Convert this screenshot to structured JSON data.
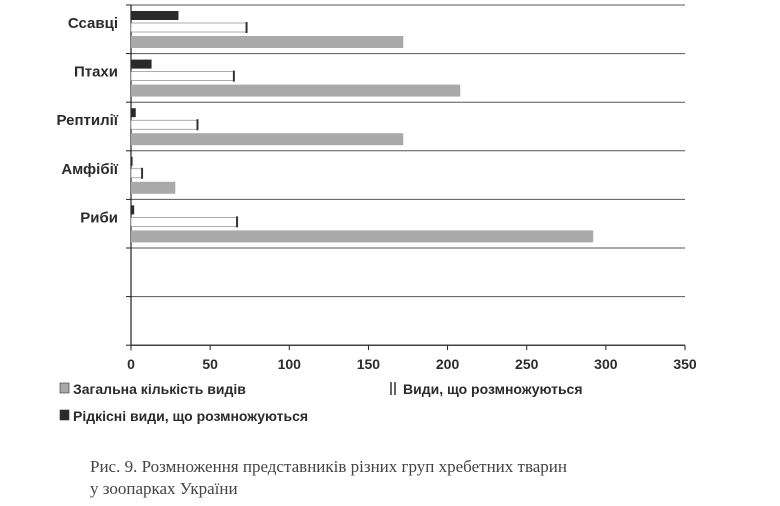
{
  "chart_data": {
    "type": "bar",
    "orientation": "horizontal",
    "categories": [
      "Ссавці",
      "Птахи",
      "Рептилії",
      "Амфібії",
      "Риби"
    ],
    "series": [
      {
        "name": "Рідкісні види, що розмножуються",
        "values": [
          30,
          13,
          3,
          1,
          2
        ],
        "color": "#2a2a2a"
      },
      {
        "name": "Види, що розмножуються",
        "values": [
          73,
          65,
          42,
          7,
          67
        ],
        "color": "#ffffff"
      },
      {
        "name": "Загальна кількість видів",
        "values": [
          172,
          208,
          172,
          28,
          292
        ],
        "color": "#a9a9a9"
      }
    ],
    "xticks": [
      "0",
      "50",
      "100",
      "150",
      "200",
      "250",
      "300",
      "350"
    ],
    "xlim": [
      0,
      350
    ],
    "grid": "horizontal",
    "legend": "bottom",
    "legend_items": [
      {
        "label": "Загальна кількість видів",
        "color": "#a9a9a9"
      },
      {
        "label": "Види, що розмножуються",
        "color": "#ffffff"
      },
      {
        "label": "Рідкісні види, що розмножуються",
        "color": "#2a2a2a"
      }
    ],
    "empty_rows": 2
  },
  "caption": "Рис. 9. Розмноження представників різних груп хребетних тварин\nу зоопарках України"
}
